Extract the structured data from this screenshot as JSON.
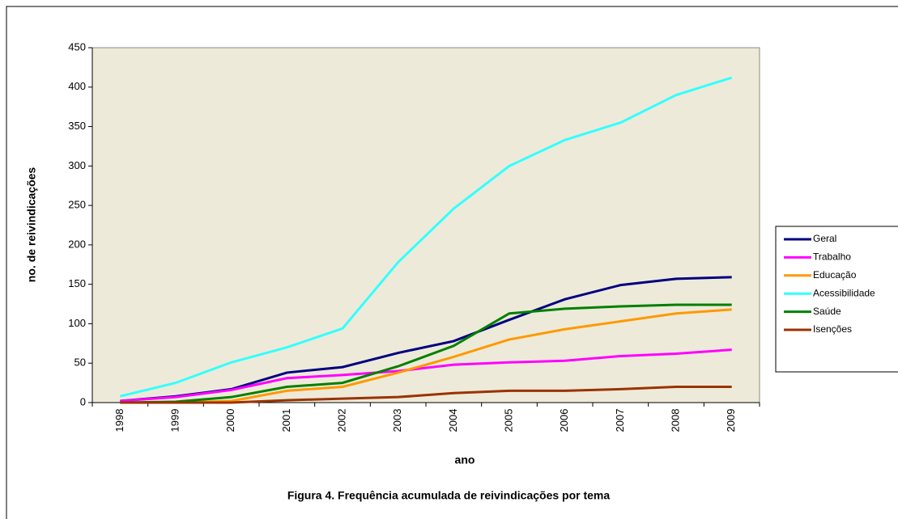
{
  "chart_data": {
    "type": "line",
    "caption": "Figura 4. Frequência acumulada de reivindicações por tema",
    "x_label": "ano",
    "y_label": "no. de reivindicações",
    "categories": [
      "1998",
      "1999",
      "2000",
      "2001",
      "2002",
      "2003",
      "2004",
      "2005",
      "2006",
      "2007",
      "2008",
      "2009"
    ],
    "series": [
      {
        "name": "Geral",
        "color": "#000080",
        "values": [
          2,
          8,
          17,
          38,
          45,
          63,
          78,
          105,
          131,
          149,
          157,
          159
        ]
      },
      {
        "name": "Trabalho",
        "color": "#ff00ff",
        "values": [
          2,
          7,
          16,
          31,
          35,
          40,
          48,
          51,
          53,
          59,
          62,
          67
        ]
      },
      {
        "name": "Educação",
        "color": "#ff9900",
        "values": [
          0,
          0,
          2,
          15,
          20,
          38,
          58,
          80,
          93,
          103,
          113,
          118
        ]
      },
      {
        "name": "Acessibilidade",
        "color": "#33ffff",
        "values": [
          8,
          25,
          51,
          70,
          94,
          178,
          246,
          300,
          333,
          355,
          390,
          412
        ]
      },
      {
        "name": "Saúde",
        "color": "#008000",
        "values": [
          0,
          1,
          7,
          20,
          25,
          46,
          72,
          113,
          119,
          122,
          124,
          124
        ]
      },
      {
        "name": "Isenções",
        "color": "#993300",
        "values": [
          0,
          0,
          0,
          3,
          5,
          7,
          12,
          15,
          15,
          17,
          20,
          20
        ]
      }
    ],
    "ylim": [
      0,
      450
    ],
    "yticks": [
      0,
      50,
      100,
      150,
      200,
      250,
      300,
      350,
      400,
      450
    ],
    "grid": false,
    "legend": "right",
    "plot_background": "#eeead9"
  }
}
